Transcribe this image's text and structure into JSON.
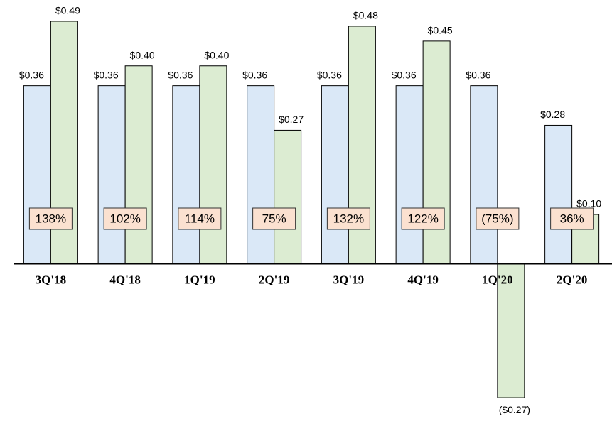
{
  "chart_data": {
    "type": "bar",
    "categories": [
      "3Q'18",
      "4Q'18",
      "1Q'19",
      "2Q'19",
      "3Q'19",
      "4Q'19",
      "1Q'20",
      "2Q'20"
    ],
    "series": [
      {
        "color": "#dae8f7",
        "values": [
          0.36,
          0.36,
          0.36,
          0.36,
          0.36,
          0.36,
          0.36,
          0.28
        ],
        "value_labels": [
          "$0.36",
          "$0.36",
          "$0.36",
          "$0.36",
          "$0.36",
          "$0.36",
          "$0.36",
          "$0.28"
        ]
      },
      {
        "color": "#dcecd2",
        "values": [
          0.49,
          0.4,
          0.4,
          0.27,
          0.48,
          0.45,
          -0.27,
          0.1
        ],
        "value_labels": [
          "$0.49",
          "$0.40",
          "$0.40",
          "$0.27",
          "$0.48",
          "$0.45",
          "($0.27)",
          "$0.10"
        ]
      }
    ],
    "annotations": [
      "138%",
      "102%",
      "114%",
      "75%",
      "132%",
      "122%",
      "(75%)",
      "36%"
    ],
    "annotation_color": "#fbe1d0",
    "ylim": [
      -0.3,
      0.5
    ]
  }
}
